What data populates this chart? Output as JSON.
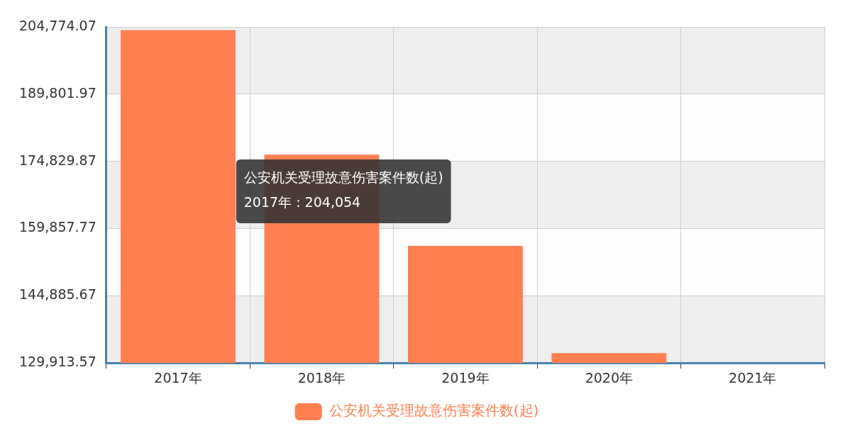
{
  "chart_data": {
    "type": "bar",
    "categories": [
      "2017年",
      "2018年",
      "2019年",
      "2020年",
      "2021年"
    ],
    "series": [
      {
        "name": "公安机关受理故意伤害案件数(起)",
        "color": "#ff7f50",
        "values": [
          204054,
          176300,
          156000,
          132100,
          null
        ]
      }
    ],
    "ylim": [
      129913.57,
      204774.07
    ],
    "yticks": [
      {
        "value": 129913.57,
        "label": "129,913.57"
      },
      {
        "value": 144885.67,
        "label": "144,885.67"
      },
      {
        "value": 159857.77,
        "label": "159,857.77"
      },
      {
        "value": 174829.87,
        "label": "174,829.87"
      },
      {
        "value": 189801.97,
        "label": "189,801.97"
      },
      {
        "value": 204774.07,
        "label": "204,774.07"
      }
    ],
    "grid": true,
    "legend": "bottom",
    "annotations": [
      "公安机关受理故意伤害案件数(起)",
      "2017年 : 204,054"
    ]
  }
}
